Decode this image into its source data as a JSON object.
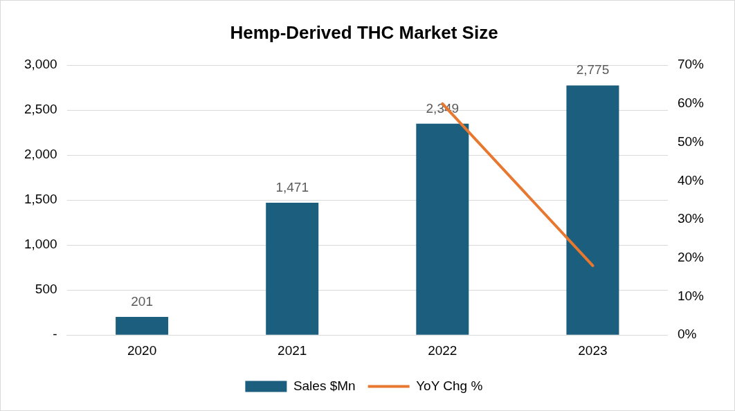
{
  "chart_data": {
    "type": "bar",
    "title": "Hemp-Derived THC Market Size",
    "categories": [
      "2020",
      "2021",
      "2022",
      "2023"
    ],
    "series": [
      {
        "name": "Sales $Mn",
        "color": "#1b5e7e",
        "values": [
          201,
          1471,
          2349,
          2775
        ],
        "value_labels": [
          "201",
          "1,471",
          "2,349",
          "2,775"
        ]
      },
      {
        "name": "YoY Chg %",
        "type": "line",
        "axis": "y2",
        "color": "#e8782f",
        "values": [
          null,
          null,
          60,
          18
        ]
      }
    ],
    "ylim": [
      0,
      3000
    ],
    "yticks": [
      {
        "value": 0,
        "label": "-"
      },
      {
        "value": 500,
        "label": "500"
      },
      {
        "value": 1000,
        "label": "1,000"
      },
      {
        "value": 1500,
        "label": "1,500"
      },
      {
        "value": 2000,
        "label": "2,000"
      },
      {
        "value": 2500,
        "label": "2,500"
      },
      {
        "value": 3000,
        "label": "3,000"
      }
    ],
    "y2lim": [
      0,
      70
    ],
    "y2ticks": [
      {
        "value": 0,
        "label": "0%"
      },
      {
        "value": 10,
        "label": "10%"
      },
      {
        "value": 20,
        "label": "20%"
      },
      {
        "value": 30,
        "label": "30%"
      },
      {
        "value": 40,
        "label": "40%"
      },
      {
        "value": 50,
        "label": "50%"
      },
      {
        "value": 60,
        "label": "60%"
      },
      {
        "value": 70,
        "label": "70%"
      }
    ],
    "grid": "y",
    "legend": "bottom",
    "marker": "none",
    "line_style": "solid"
  }
}
